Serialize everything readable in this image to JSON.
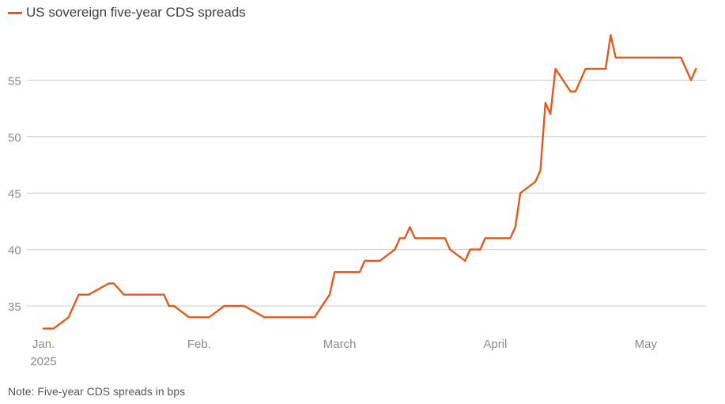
{
  "chart_data": {
    "type": "line",
    "title": "",
    "xlabel": "",
    "ylabel": "",
    "series": [
      {
        "name": "US sovereign five-year CDS spreads",
        "color": "#e05a1c",
        "points": [
          [
            "2025-01-01",
            33
          ],
          [
            "2025-01-03",
            33
          ],
          [
            "2025-01-06",
            34
          ],
          [
            "2025-01-08",
            36
          ],
          [
            "2025-01-10",
            36
          ],
          [
            "2025-01-14",
            37
          ],
          [
            "2025-01-15",
            37
          ],
          [
            "2025-01-17",
            36
          ],
          [
            "2025-01-24",
            36
          ],
          [
            "2025-01-25",
            36
          ],
          [
            "2025-01-26",
            35
          ],
          [
            "2025-01-27",
            35
          ],
          [
            "2025-01-30",
            34
          ],
          [
            "2025-02-03",
            34
          ],
          [
            "2025-02-06",
            35
          ],
          [
            "2025-02-10",
            35
          ],
          [
            "2025-02-14",
            34
          ],
          [
            "2025-02-24",
            34
          ],
          [
            "2025-02-27",
            36
          ],
          [
            "2025-02-28",
            38
          ],
          [
            "2025-03-05",
            38
          ],
          [
            "2025-03-06",
            39
          ],
          [
            "2025-03-09",
            39
          ],
          [
            "2025-03-12",
            40
          ],
          [
            "2025-03-13",
            41
          ],
          [
            "2025-03-14",
            41
          ],
          [
            "2025-03-15",
            42
          ],
          [
            "2025-03-16",
            41
          ],
          [
            "2025-03-22",
            41
          ],
          [
            "2025-03-23",
            40
          ],
          [
            "2025-03-26",
            39
          ],
          [
            "2025-03-27",
            40
          ],
          [
            "2025-03-29",
            40
          ],
          [
            "2025-03-30",
            41
          ],
          [
            "2025-04-04",
            41
          ],
          [
            "2025-04-05",
            42
          ],
          [
            "2025-04-06",
            45
          ],
          [
            "2025-04-09",
            46
          ],
          [
            "2025-04-10",
            47
          ],
          [
            "2025-04-11",
            53
          ],
          [
            "2025-04-12",
            52
          ],
          [
            "2025-04-13",
            56
          ],
          [
            "2025-04-16",
            54
          ],
          [
            "2025-04-17",
            54
          ],
          [
            "2025-04-19",
            56
          ],
          [
            "2025-04-23",
            56
          ],
          [
            "2025-04-24",
            59
          ],
          [
            "2025-04-25",
            57
          ],
          [
            "2025-05-08",
            57
          ],
          [
            "2025-05-10",
            55
          ],
          [
            "2025-05-11",
            56
          ]
        ]
      }
    ],
    "x_ticks": [
      {
        "date": "2025-01-01",
        "label": "Jan.",
        "sublabel": "2025"
      },
      {
        "date": "2025-02-01",
        "label": "Feb.",
        "sublabel": ""
      },
      {
        "date": "2025-03-01",
        "label": "March",
        "sublabel": ""
      },
      {
        "date": "2025-04-01",
        "label": "April",
        "sublabel": ""
      },
      {
        "date": "2025-05-01",
        "label": "May",
        "sublabel": ""
      }
    ],
    "y_ticks": [
      35,
      40,
      45,
      50,
      55
    ],
    "xlim": [
      "2024-12-29",
      "2025-05-13"
    ],
    "ylim": [
      32.2,
      60
    ],
    "grid": "horizontal",
    "legend_position": "top-left"
  },
  "note": "Note: Five-year CDS spreads in bps"
}
